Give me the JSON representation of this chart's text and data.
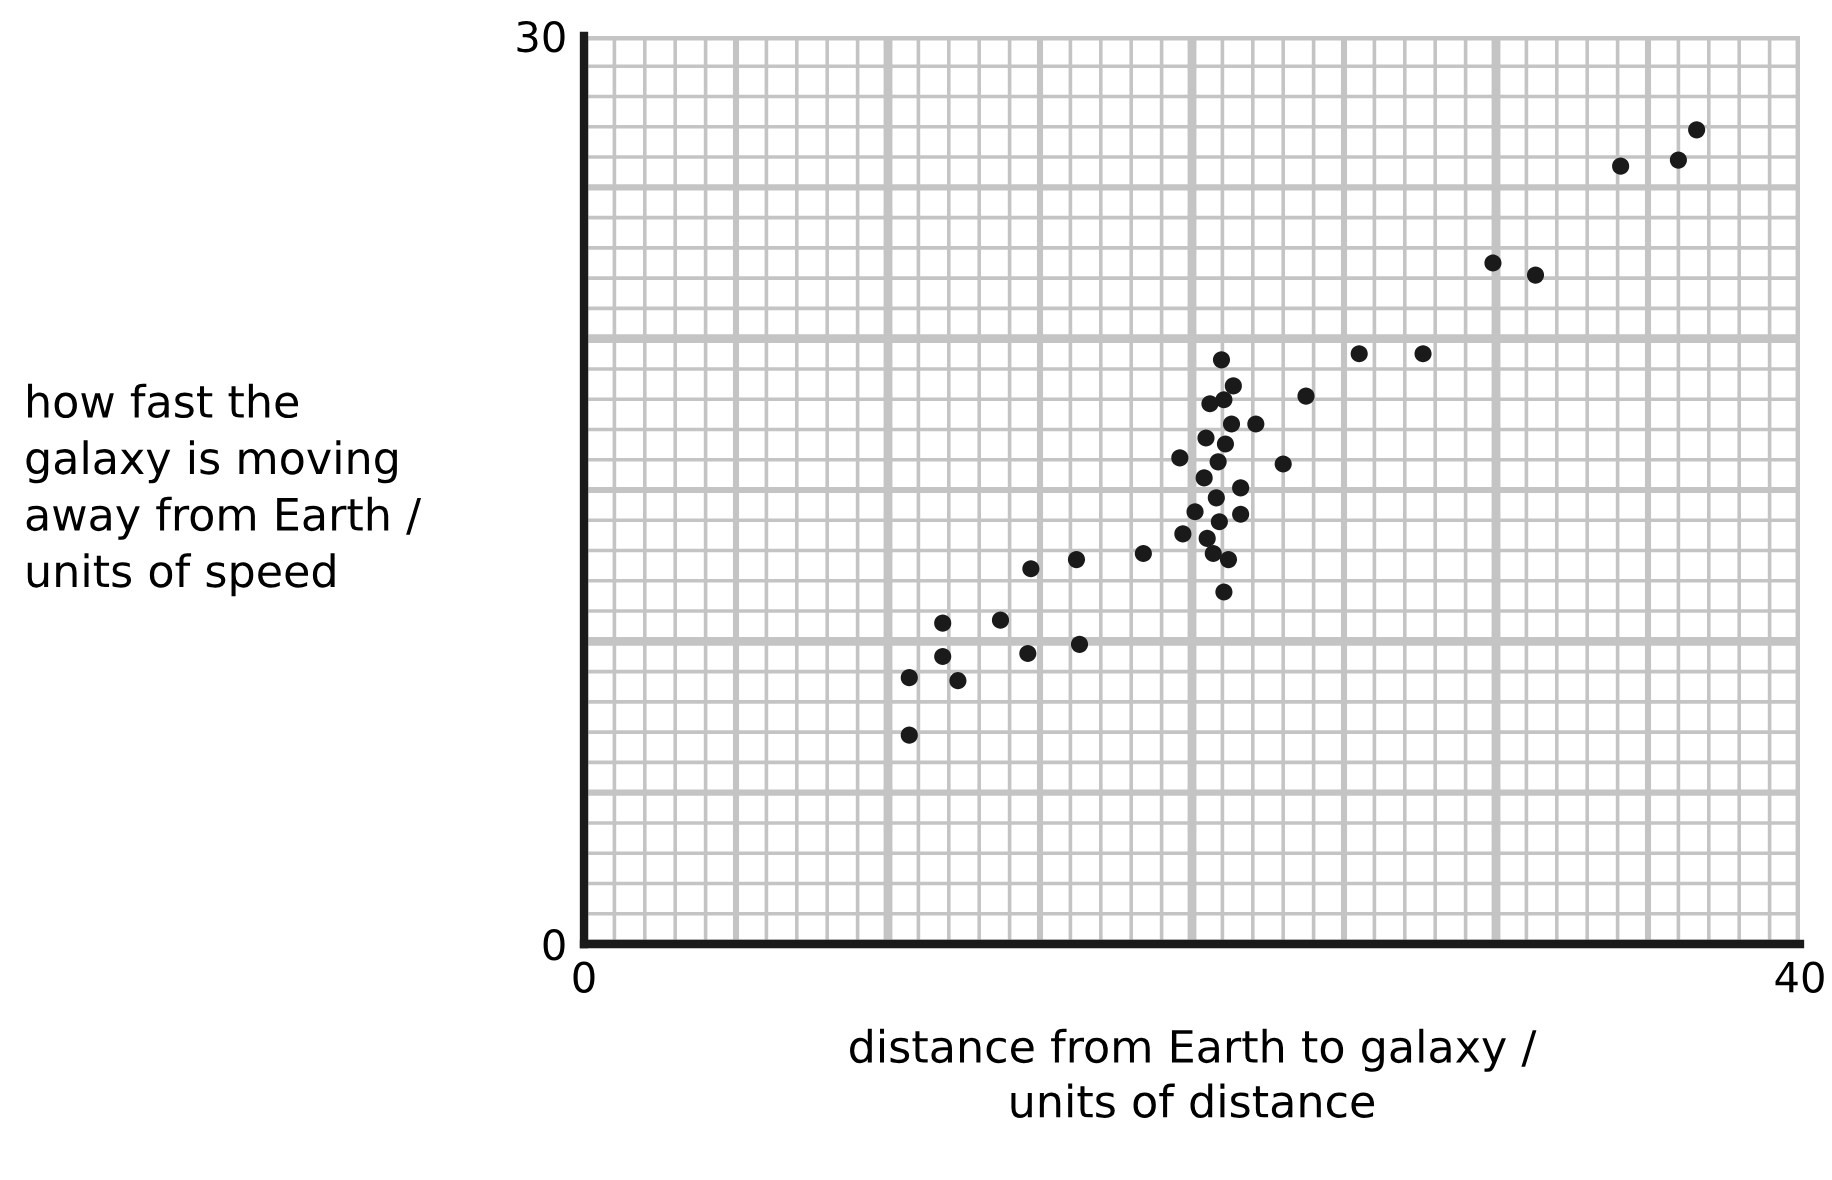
{
  "chart_data": {
    "type": "scatter",
    "xlabel": "distance from Earth to galaxy /\nunits of distance",
    "ylabel": "how fast the\ngalaxy is moving\naway from Earth /\nunits of speed",
    "x": [
      10.7,
      10.7,
      12.3,
      11.8,
      11.8,
      13.7,
      14.6,
      16.3,
      14.7,
      16.2,
      18.4,
      19.7,
      20.5,
      20.7,
      21.2,
      21.05,
      20.9,
      20.1,
      21.6,
      20.4,
      20.8,
      21.6,
      19.6,
      20.86,
      23.0,
      20.46,
      21.1,
      21.3,
      22.1,
      20.59,
      21.05,
      21.36,
      20.97,
      23.75,
      25.5,
      27.6,
      29.9,
      31.3,
      34.1,
      36.0,
      36.6
    ],
    "values": [
      6.9,
      8.8,
      8.7,
      9.5,
      10.6,
      10.7,
      9.6,
      9.9,
      12.4,
      12.7,
      12.9,
      13.55,
      13.4,
      12.9,
      12.7,
      11.63,
      13.95,
      14.28,
      14.2,
      15.4,
      14.74,
      15.07,
      16.06,
      15.93,
      15.86,
      16.72,
      16.52,
      17.18,
      17.18,
      17.85,
      17.98,
      18.44,
      19.3,
      18.1,
      19.5,
      19.5,
      22.5,
      22.1,
      25.7,
      25.9,
      26.9
    ],
    "color": "#1a1a1a",
    "marker": "circle",
    "xlim": [
      0,
      40
    ],
    "ylim": [
      0,
      30
    ],
    "xticks": [
      0,
      40
    ],
    "yticks": [
      0,
      30
    ],
    "grid": true
  }
}
